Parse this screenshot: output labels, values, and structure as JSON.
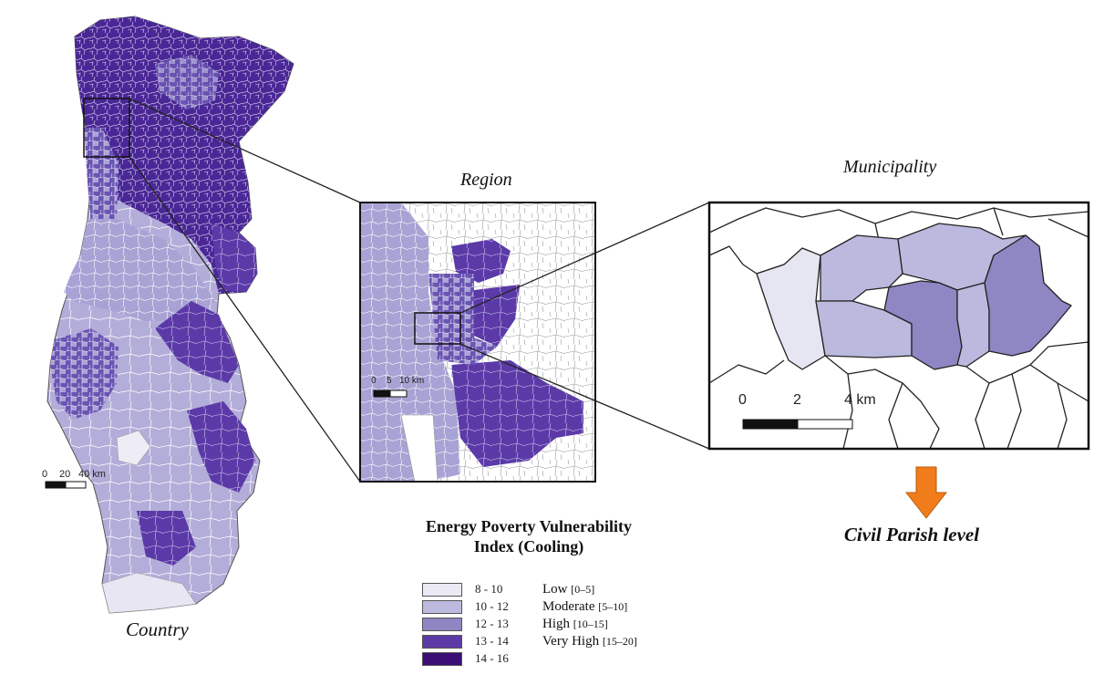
{
  "captions": {
    "country": "Country",
    "region": "Region",
    "municipality": "Municipality",
    "civil_parish": "Civil Parish level"
  },
  "legend": {
    "title_line1": "Energy  Poverty Vulnerability",
    "title_line2": "Index (Cooling)",
    "classes": [
      {
        "range": "8 - 10",
        "label": "Low",
        "bracket": "[0–5]",
        "color": "#ebe9f4"
      },
      {
        "range": "10 - 12",
        "label": "Moderate",
        "bracket": "[5–10]",
        "color": "#bcbade"
      },
      {
        "range": "12 - 13",
        "label": "High",
        "bracket": "[10–15]",
        "color": "#8f86c4"
      },
      {
        "range": "13 - 14",
        "label": "Very High",
        "bracket": "[15–20]",
        "color": "#5e3aa6"
      },
      {
        "range": "14 - 16",
        "label": "",
        "bracket": "",
        "color": "#3b0f76"
      }
    ]
  },
  "scalebars": {
    "country": {
      "ticks": [
        "0",
        "20",
        "40 km"
      ]
    },
    "region": {
      "ticks": [
        "0",
        "5",
        "10 km"
      ]
    },
    "municipality": {
      "ticks": [
        "0",
        "2",
        "4 km"
      ]
    }
  },
  "colors": {
    "border": "#222222",
    "arrow": "#f07d1a",
    "arrow_outline": "#b85a0c",
    "zoom_line": "#222222"
  }
}
